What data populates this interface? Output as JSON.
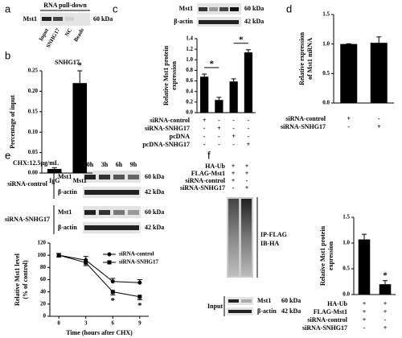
{
  "panel_labels": [
    "a",
    "b",
    "c",
    "d",
    "e",
    "f"
  ],
  "blots": {
    "a": {
      "title": "RNA pull-down",
      "rows": [
        {
          "protein": "Mst1",
          "size": "60 kDa"
        }
      ],
      "lanes": [
        "Input",
        "SNHG17",
        "NC",
        "Beads"
      ]
    },
    "c": {
      "rows": [
        {
          "protein": "Mst1",
          "size": "60 kDa"
        },
        {
          "protein": "β-actin",
          "size": "42 kDa"
        }
      ]
    },
    "e": {
      "treatment": "CHX:12.5μg/mL",
      "lanes": [
        "0h",
        "3h",
        "6h",
        "9h"
      ],
      "groups": [
        {
          "name": "siRNA-control",
          "rows": [
            {
              "protein": "Mst1",
              "size": "60 kDa"
            },
            {
              "protein": "β-actin",
              "size": "42 kDa"
            }
          ]
        },
        {
          "name": "siRNA-SNHG17",
          "rows": [
            {
              "protein": "Mst1",
              "size": "60 kDa"
            },
            {
              "protein": "β-actin",
              "size": "42 kDa"
            }
          ]
        }
      ]
    },
    "f": {
      "treatments": [
        {
          "name": "HA-Ub",
          "marks": [
            "+",
            "+"
          ]
        },
        {
          "name": "FLAG-Mst1",
          "marks": [
            "+",
            "+"
          ]
        },
        {
          "name": "siRNA-control",
          "marks": [
            "+",
            "-"
          ]
        },
        {
          "name": "siRNA-SNHG17",
          "marks": [
            "-",
            "+"
          ]
        }
      ],
      "ip_labels": [
        "IP-FLAG",
        "IB-HA"
      ],
      "input_label": "Input",
      "rows": [
        {
          "protein": "Mst1",
          "size": "60 kDa"
        },
        {
          "protein": "β-actin",
          "size": "42 kDa"
        }
      ]
    }
  },
  "chart_data": [
    {
      "type": "bar",
      "title": "SNHG17",
      "ylabel": [
        "Percentage of input"
      ],
      "categories": [
        "IgG",
        "Mst1"
      ],
      "values": [
        0.01,
        0.22
      ],
      "errors": [
        0.003,
        0.03
      ],
      "value_annotations": [
        null,
        "*"
      ],
      "color": "#000000",
      "ylim": [
        0,
        0.25
      ],
      "yticks": [
        {
          "value": 0,
          "label": "0.00"
        },
        {
          "value": 0.05,
          "label": "0.05"
        },
        {
          "value": 0.1,
          "label": "0.10"
        },
        {
          "value": 0.15,
          "label": "0.15"
        },
        {
          "value": 0.2,
          "label": "0.20"
        },
        {
          "value": 0.25,
          "label": "0.25"
        }
      ]
    },
    {
      "type": "bar",
      "ylabel": [
        "Relative Mst1 protein",
        "expression"
      ],
      "values": [
        0.68,
        0.24,
        0.59,
        1.14
      ],
      "errors": [
        0.05,
        0.05,
        0.05,
        0.05
      ],
      "color": "#000000",
      "treatments": [
        {
          "name": "siRNA-control",
          "marks": [
            "+",
            "-",
            "-",
            "-"
          ]
        },
        {
          "name": "siRNA-SNHG17",
          "marks": [
            "-",
            "+",
            "-",
            "-"
          ]
        },
        {
          "name": "pcDNA",
          "marks": [
            "-",
            "-",
            "+",
            "-"
          ]
        },
        {
          "name": "pcDNA-SNHG17",
          "marks": [
            "-",
            "-",
            "-",
            "+"
          ]
        }
      ],
      "brackets": [
        {
          "from": 0,
          "to": 1,
          "label": "*"
        },
        {
          "from": 2,
          "to": 3,
          "label": "*"
        }
      ],
      "ylim": [
        0,
        1.4
      ],
      "yticks": [
        {
          "value": 0,
          "label": "0.0"
        },
        0.2,
        0.4,
        0.6,
        0.8,
        {
          "value": 1,
          "label": "1.0"
        },
        1.2,
        1.4
      ]
    },
    {
      "type": "bar",
      "ylabel": [
        "Relative expression",
        "of Mst1 mRNA"
      ],
      "values": [
        1.0,
        1.02
      ],
      "errors": [
        0.005,
        0.1
      ],
      "color": "#000000",
      "treatments": [
        {
          "name": "siRNA-control",
          "marks": [
            "+",
            "-"
          ]
        },
        {
          "name": "siRNA-SNHG17",
          "marks": [
            "-",
            "+"
          ]
        }
      ],
      "ylim": [
        0,
        1.5
      ],
      "yticks": [
        {
          "value": 0,
          "label": "0.0"
        },
        0.5,
        {
          "value": 1,
          "label": "1.0"
        },
        1.5
      ]
    },
    {
      "type": "line",
      "ylabel": [
        "Relative Mst1 level",
        "(% of control)"
      ],
      "xlabel": "Time (hours after CHX)",
      "x": [
        0,
        3,
        6,
        9
      ],
      "series": [
        {
          "name": "siRNA-control",
          "color": "#000000",
          "marker": "circle",
          "values": [
            100,
            92,
            57,
            55
          ],
          "errors": [
            3,
            6,
            5,
            5
          ]
        },
        {
          "name": "siRNA-SNHG17",
          "color": "#000000",
          "marker": "square",
          "values": [
            100,
            88,
            40,
            32
          ],
          "errors": [
            3,
            5,
            5,
            5
          ],
          "value_annotations": [
            null,
            null,
            "*",
            "*"
          ]
        }
      ],
      "xlim": [
        -1,
        10
      ],
      "xticks": [
        0,
        3,
        6,
        9
      ],
      "ylim": [
        0,
        120
      ],
      "yticks": [
        0,
        20,
        40,
        60,
        80,
        100,
        120
      ]
    },
    {
      "type": "bar",
      "ylabel": [
        "Relative Mst1 protein",
        "expression"
      ],
      "values": [
        1.07,
        0.2
      ],
      "errors": [
        0.1,
        0.07
      ],
      "value_annotations": [
        null,
        "*"
      ],
      "color": "#000000",
      "treatments": [
        {
          "name": "HA-Ub",
          "marks": [
            "+",
            "+"
          ]
        },
        {
          "name": "FLAG-Mst1",
          "marks": [
            "+",
            "+"
          ]
        },
        {
          "name": "siRNA-control",
          "marks": [
            "+",
            "-"
          ]
        },
        {
          "name": "siRNA-SNHG17",
          "marks": [
            "-",
            "+"
          ]
        }
      ],
      "ylim": [
        0,
        1.5
      ],
      "yticks": [
        {
          "value": 0,
          "label": "0.0"
        },
        0.5,
        {
          "value": 1,
          "label": "1.0"
        },
        1.5
      ]
    }
  ]
}
